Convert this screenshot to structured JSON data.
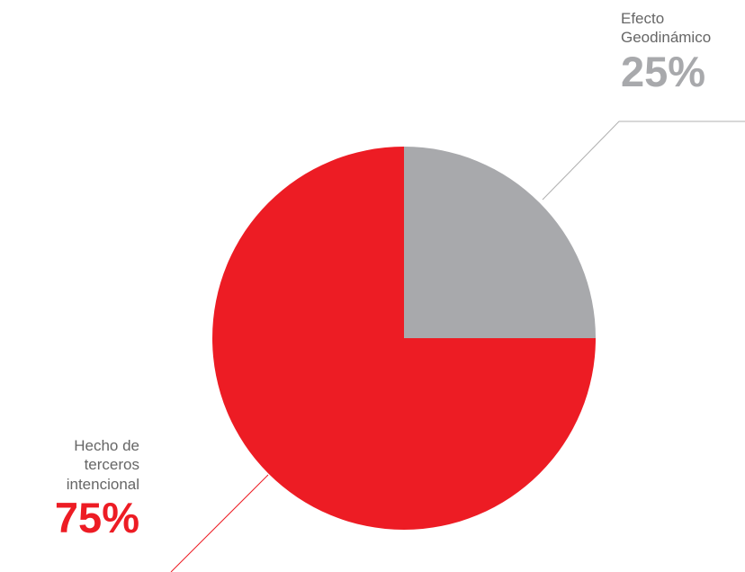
{
  "chart_data": {
    "type": "pie",
    "slices": [
      {
        "name_lines": [
          "Efecto",
          "Geodinámico"
        ],
        "value": 25,
        "value_label": "25%",
        "color": "#a8a9ac"
      },
      {
        "name_lines": [
          "Hecho de",
          "terceros",
          "intencional"
        ],
        "value": 75,
        "value_label": "75%",
        "color": "#ed1c24"
      }
    ],
    "start_angle_deg": 0,
    "direction": "clockwise"
  }
}
